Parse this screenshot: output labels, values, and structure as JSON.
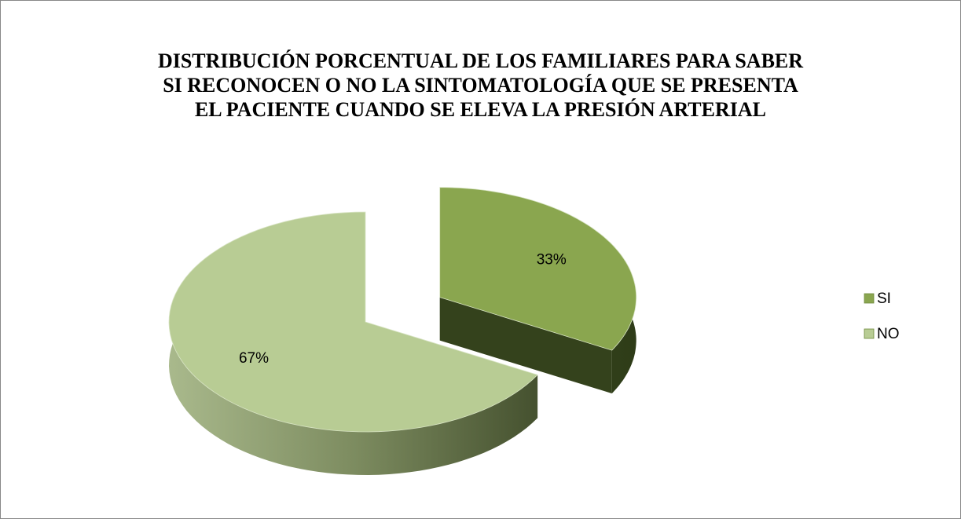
{
  "chart_data": {
    "type": "pie",
    "title": "DISTRIBUCIÓN PORCENTUAL DE LOS FAMILIARES PARA SABER\nSI  RECONOCEN O NO LA SINTOMATOLOGÍA QUE SE PRESENTA\nEL PACIENTE CUANDO SE  ELEVA LA PRESIÓN ARTERIAL",
    "categories": [
      "SI",
      "NO"
    ],
    "values": [
      33,
      67
    ],
    "value_labels": [
      "33%",
      "67%"
    ],
    "colors": [
      "#8aa64f",
      "#b8cc94"
    ],
    "legend": "right"
  }
}
